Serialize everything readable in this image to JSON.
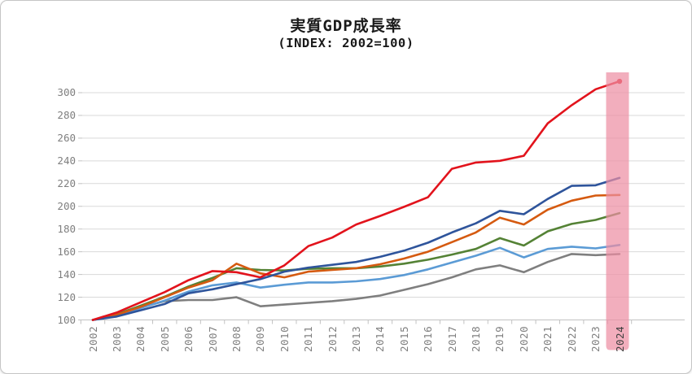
{
  "card": {
    "title": "実質GDP成長率",
    "subtitle": "(INDEX: 2002=100)"
  },
  "colors": {
    "grid": "#d9d9d9",
    "axis": "#c2c2c2",
    "tick_label": "#7f7f7f",
    "highlight_band": "#ed8fa3",
    "highlight_label": "#3f3f3f",
    "title_text": "#1a1a1a"
  },
  "chart_data": {
    "type": "line",
    "title": "実質GDP成長率",
    "subtitle": "(INDEX: 2002=100)",
    "xlabel": "",
    "ylabel": "",
    "x": [
      2002,
      2003,
      2004,
      2005,
      2006,
      2007,
      2008,
      2009,
      2010,
      2011,
      2012,
      2013,
      2014,
      2015,
      2016,
      2017,
      2018,
      2019,
      2020,
      2021,
      2022,
      2023,
      2024
    ],
    "yticks": [
      100,
      120,
      140,
      160,
      180,
      200,
      220,
      240,
      260,
      280,
      300
    ],
    "ylim": [
      100,
      318
    ],
    "grid": true,
    "legend": "none",
    "x_label_rotation": -90,
    "highlight": {
      "x": 2024,
      "band_color": "#ed8fa3",
      "band_opacity": 0.72,
      "label_color": "#3f3f3f"
    },
    "series": [
      {
        "name": "red",
        "color": "#e2131c",
        "values": [
          100,
          106.5,
          115.5,
          124.5,
          135,
          143,
          142,
          137.5,
          148,
          165,
          172.5,
          184,
          191.5,
          199.5,
          208,
          233,
          238.5,
          240,
          244.5,
          273,
          289,
          303,
          310
        ],
        "end_marker": true
      },
      {
        "name": "dark-blue",
        "color": "#2e549b",
        "values": [
          100,
          103,
          108.5,
          114,
          123.5,
          127,
          131.5,
          136,
          142.5,
          146,
          148.5,
          151,
          155.5,
          161,
          168,
          177,
          185,
          196,
          193,
          206.5,
          218,
          218.5,
          225
        ],
        "end_marker": false
      },
      {
        "name": "orange",
        "color": "#d55a10",
        "values": [
          100,
          104.5,
          111.5,
          120,
          128.5,
          135,
          149.5,
          141,
          137.5,
          142.5,
          144,
          145.5,
          149,
          154,
          160,
          168.5,
          177,
          190,
          184,
          197,
          205,
          209.5,
          210
        ],
        "end_marker": false
      },
      {
        "name": "green",
        "color": "#548235",
        "values": [
          100,
          105,
          112.5,
          120.5,
          129.5,
          137,
          145.5,
          144,
          143.5,
          145,
          145.5,
          145.5,
          147,
          149.5,
          153,
          157.5,
          162.5,
          172,
          165.5,
          178,
          184.5,
          188,
          194
        ],
        "end_marker": false
      },
      {
        "name": "light-blue",
        "color": "#5b9bd5",
        "values": [
          100,
          103.5,
          110.5,
          117,
          125,
          130.5,
          133,
          128.5,
          131,
          133,
          133,
          134,
          136,
          139.5,
          144.5,
          150.5,
          156.5,
          163.5,
          155,
          162.5,
          164.5,
          163,
          166
        ],
        "end_marker": false
      },
      {
        "name": "gray",
        "color": "#7f7f7f",
        "values": [
          100,
          104,
          111,
          116.5,
          117.5,
          117.5,
          120,
          112,
          113.5,
          115,
          116.5,
          118.5,
          121.5,
          126.5,
          131.5,
          137.5,
          144.5,
          148,
          142,
          151,
          158,
          157,
          158
        ],
        "end_marker": false
      }
    ]
  }
}
